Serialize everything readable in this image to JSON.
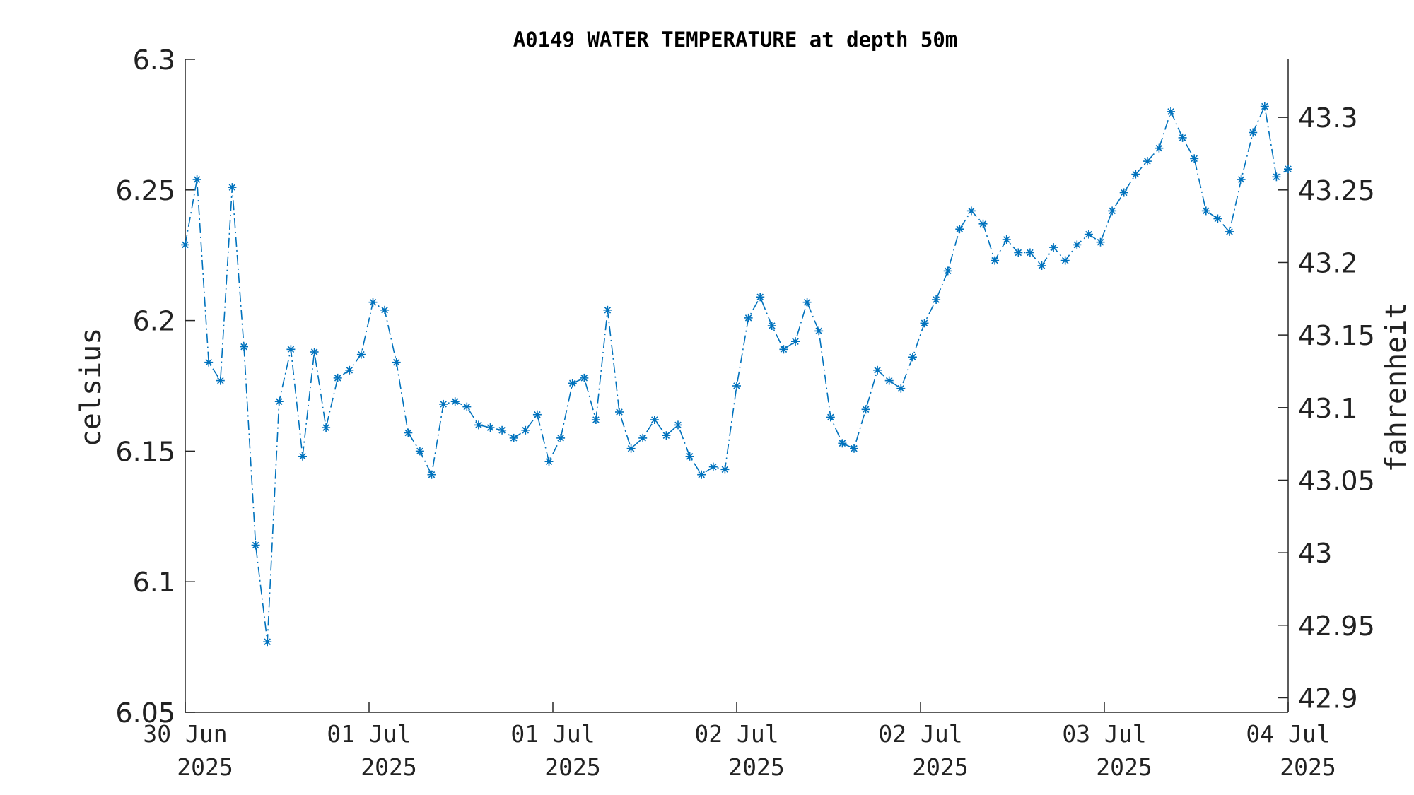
{
  "chart_data": {
    "type": "line",
    "title": "A0149 WATER TEMPERATURE at depth 50m",
    "ylabel": "celsius",
    "ylabel_right": "fahrenheit",
    "ylim": [
      6.05,
      6.3
    ],
    "ylim_right": [
      42.89,
      43.34
    ],
    "yticks": [
      "6.05",
      "6.1",
      "6.15",
      "6.2",
      "6.25",
      "6.3"
    ],
    "yticks_right": [
      "42.9",
      "42.95",
      "43",
      "43.05",
      "43.1",
      "43.15",
      "43.2",
      "43.25",
      "43.3"
    ],
    "xticks": [
      {
        "day": "30 Jun",
        "year": "2025"
      },
      {
        "day": "01 Jul",
        "year": "2025"
      },
      {
        "day": "01 Jul",
        "year": "2025"
      },
      {
        "day": "02 Jul",
        "year": "2025"
      },
      {
        "day": "02 Jul",
        "year": "2025"
      },
      {
        "day": "03 Jul",
        "year": "2025"
      },
      {
        "day": "04 Jul",
        "year": "2025"
      }
    ],
    "marker": "*",
    "line_style": "dash-dot",
    "grid": false,
    "series": [
      {
        "values": [
          6.229,
          6.254,
          6.184,
          6.177,
          6.251,
          6.19,
          6.114,
          6.077,
          6.169,
          6.189,
          6.148,
          6.188,
          6.159,
          6.178,
          6.181,
          6.187,
          6.207,
          6.204,
          6.184,
          6.157,
          6.15,
          6.141,
          6.168,
          6.169,
          6.167,
          6.16,
          6.159,
          6.158,
          6.155,
          6.158,
          6.164,
          6.146,
          6.155,
          6.176,
          6.178,
          6.162,
          6.204,
          6.165,
          6.151,
          6.155,
          6.162,
          6.156,
          6.16,
          6.148,
          6.141,
          6.144,
          6.143,
          6.175,
          6.201,
          6.209,
          6.198,
          6.189,
          6.192,
          6.207,
          6.196,
          6.163,
          6.153,
          6.151,
          6.166,
          6.181,
          6.177,
          6.174,
          6.186,
          6.199,
          6.208,
          6.219,
          6.235,
          6.242,
          6.237,
          6.223,
          6.231,
          6.226,
          6.226,
          6.221,
          6.228,
          6.223,
          6.229,
          6.233,
          6.23,
          6.242,
          6.249,
          6.256,
          6.261,
          6.266,
          6.28,
          6.27,
          6.262,
          6.242,
          6.239,
          6.234,
          6.254,
          6.272,
          6.282,
          6.255,
          6.258
        ]
      }
    ]
  }
}
